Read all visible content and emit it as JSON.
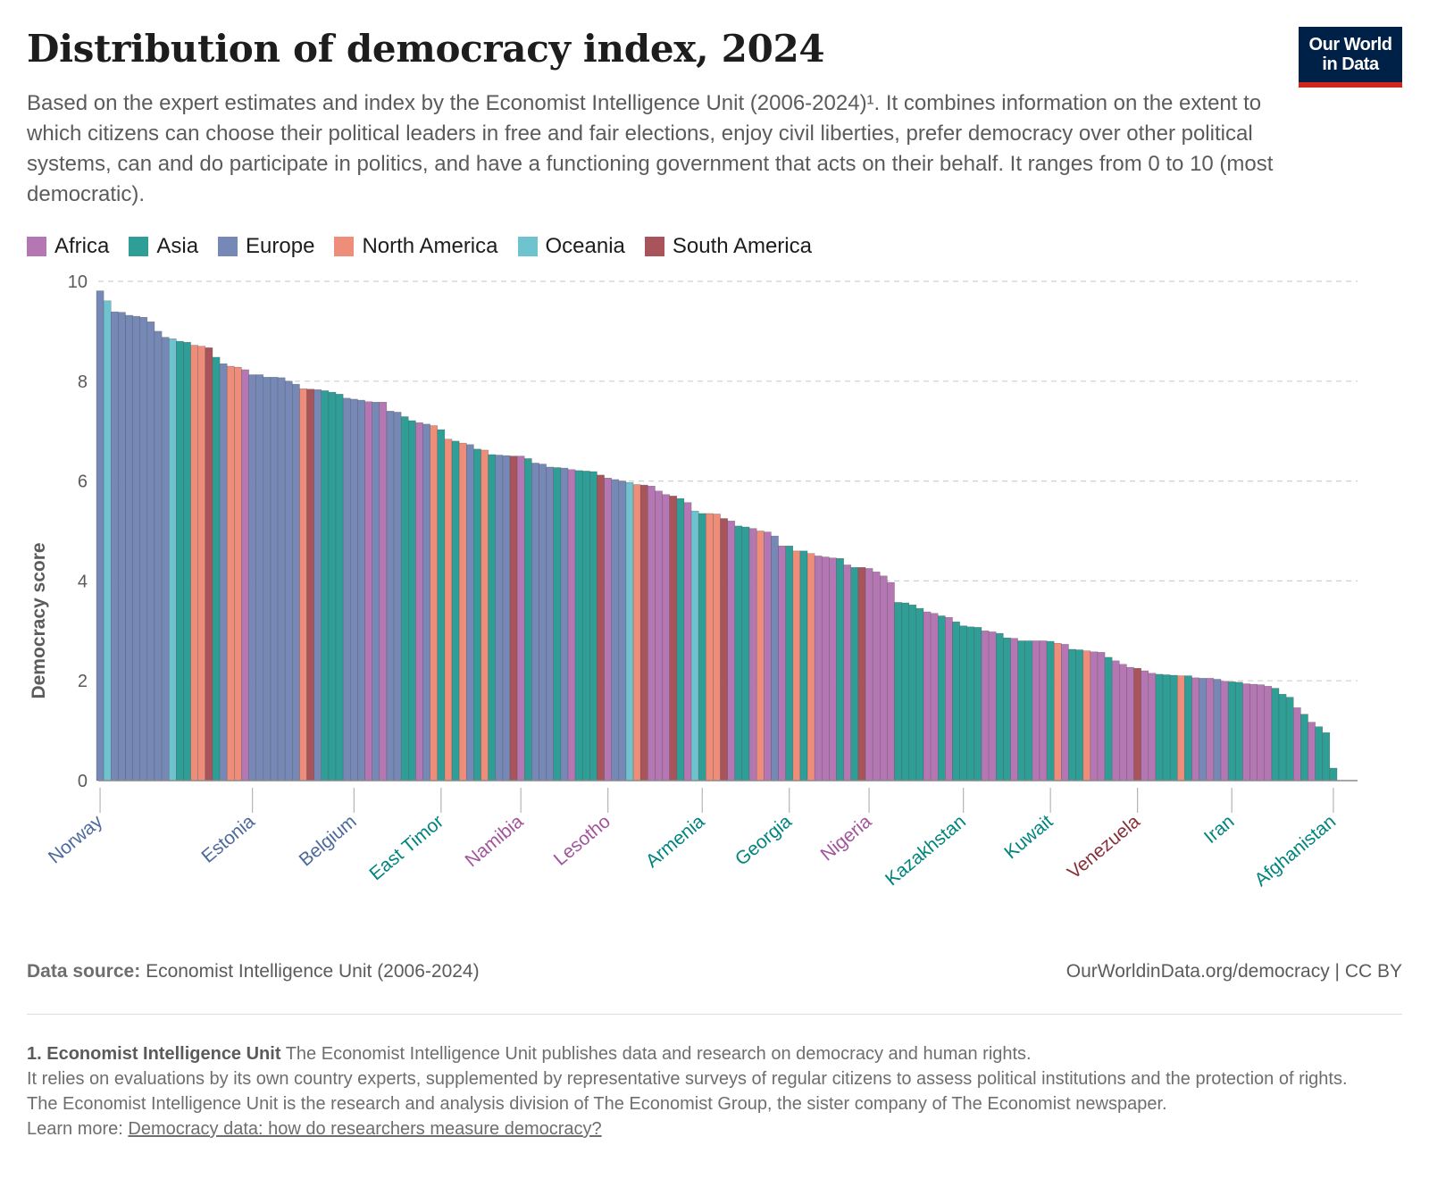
{
  "header": {
    "title": "Distribution of democracy index, 2024",
    "subtitle": "Based on the expert estimates and index by the Economist Intelligence Unit (2006-2024)¹. It combines information on the extent to which citizens can choose their political leaders in free and fair elections, enjoy civil liberties, prefer democracy over other political systems, can and do participate in politics, and have a functioning government that acts on their behalf. It ranges from 0 to 10 (most democratic).",
    "logo_line1": "Our World",
    "logo_line2": "in Data"
  },
  "colors": {
    "Africa": "#b577b3",
    "Asia": "#2f9e96",
    "Europe": "#7689b6",
    "North America": "#ed8d7a",
    "Oceania": "#6fc3cf",
    "South America": "#a9545a"
  },
  "label_colors": {
    "Africa": "#a2559c",
    "Asia": "#00847e",
    "Europe": "#4c6a9c",
    "North America": "#e56e5a",
    "Oceania": "#3db4c7",
    "South America": "#883039"
  },
  "chart_data": {
    "type": "bar",
    "title": "Distribution of democracy index, 2024",
    "ylabel": "Democracy score",
    "ylim": [
      0,
      10
    ],
    "yticks": [
      0,
      2,
      4,
      6,
      8,
      10
    ],
    "grid": true,
    "legend": [
      "Africa",
      "Asia",
      "Europe",
      "North America",
      "Oceania",
      "South America"
    ],
    "legend_position": "top-left",
    "labeled_countries": [
      "Norway",
      "Estonia",
      "Belgium",
      "East Timor",
      "Namibia",
      "Lesotho",
      "Armenia",
      "Georgia",
      "Nigeria",
      "Kazakhstan",
      "Kuwait",
      "Venezuela",
      "Iran",
      "Afghanistan"
    ],
    "bars": [
      {
        "v": 9.81,
        "r": "Europe",
        "c": "Norway"
      },
      {
        "v": 9.61,
        "r": "Oceania"
      },
      {
        "v": 9.39,
        "r": "Europe"
      },
      {
        "v": 9.38,
        "r": "Europe"
      },
      {
        "v": 9.32,
        "r": "Europe"
      },
      {
        "v": 9.3,
        "r": "Europe"
      },
      {
        "v": 9.28,
        "r": "Europe"
      },
      {
        "v": 9.19,
        "r": "Europe"
      },
      {
        "v": 9.0,
        "r": "Europe"
      },
      {
        "v": 8.88,
        "r": "Europe"
      },
      {
        "v": 8.85,
        "r": "Oceania"
      },
      {
        "v": 8.8,
        "r": "Asia"
      },
      {
        "v": 8.78,
        "r": "Asia"
      },
      {
        "v": 8.72,
        "r": "North America"
      },
      {
        "v": 8.7,
        "r": "North America"
      },
      {
        "v": 8.67,
        "r": "South America"
      },
      {
        "v": 8.48,
        "r": "Asia"
      },
      {
        "v": 8.35,
        "r": "Europe"
      },
      {
        "v": 8.3,
        "r": "North America"
      },
      {
        "v": 8.28,
        "r": "North America"
      },
      {
        "v": 8.23,
        "r": "Africa"
      },
      {
        "v": 8.13,
        "r": "Europe",
        "c": "Estonia"
      },
      {
        "v": 8.13,
        "r": "Europe"
      },
      {
        "v": 8.08,
        "r": "Europe"
      },
      {
        "v": 8.08,
        "r": "Europe"
      },
      {
        "v": 8.07,
        "r": "Europe"
      },
      {
        "v": 8.0,
        "r": "Europe"
      },
      {
        "v": 7.94,
        "r": "Europe"
      },
      {
        "v": 7.85,
        "r": "North America"
      },
      {
        "v": 7.84,
        "r": "South America"
      },
      {
        "v": 7.83,
        "r": "Europe"
      },
      {
        "v": 7.81,
        "r": "Asia"
      },
      {
        "v": 7.78,
        "r": "Asia"
      },
      {
        "v": 7.74,
        "r": "Asia"
      },
      {
        "v": 7.66,
        "r": "Europe"
      },
      {
        "v": 7.64,
        "r": "Europe",
        "c": "Belgium"
      },
      {
        "v": 7.62,
        "r": "Europe"
      },
      {
        "v": 7.59,
        "r": "Africa"
      },
      {
        "v": 7.58,
        "r": "Europe"
      },
      {
        "v": 7.58,
        "r": "Africa"
      },
      {
        "v": 7.4,
        "r": "Europe"
      },
      {
        "v": 7.38,
        "r": "Europe"
      },
      {
        "v": 7.29,
        "r": "Asia"
      },
      {
        "v": 7.21,
        "r": "Asia"
      },
      {
        "v": 7.17,
        "r": "Africa"
      },
      {
        "v": 7.14,
        "r": "Europe"
      },
      {
        "v": 7.11,
        "r": "North America"
      },
      {
        "v": 7.03,
        "r": "Asia",
        "c": "East Timor"
      },
      {
        "v": 6.84,
        "r": "North America"
      },
      {
        "v": 6.8,
        "r": "Asia"
      },
      {
        "v": 6.76,
        "r": "North America"
      },
      {
        "v": 6.73,
        "r": "Europe"
      },
      {
        "v": 6.64,
        "r": "Asia"
      },
      {
        "v": 6.62,
        "r": "North America"
      },
      {
        "v": 6.53,
        "r": "Asia"
      },
      {
        "v": 6.52,
        "r": "Europe"
      },
      {
        "v": 6.51,
        "r": "Europe"
      },
      {
        "v": 6.5,
        "r": "South America"
      },
      {
        "v": 6.5,
        "r": "Africa",
        "c": "Namibia"
      },
      {
        "v": 6.45,
        "r": "Asia"
      },
      {
        "v": 6.36,
        "r": "Europe"
      },
      {
        "v": 6.34,
        "r": "Europe"
      },
      {
        "v": 6.28,
        "r": "Europe"
      },
      {
        "v": 6.27,
        "r": "Asia"
      },
      {
        "v": 6.26,
        "r": "Europe"
      },
      {
        "v": 6.23,
        "r": "Africa"
      },
      {
        "v": 6.21,
        "r": "Asia"
      },
      {
        "v": 6.2,
        "r": "Asia"
      },
      {
        "v": 6.19,
        "r": "Asia"
      },
      {
        "v": 6.12,
        "r": "South America"
      },
      {
        "v": 6.06,
        "r": "Africa",
        "c": "Lesotho"
      },
      {
        "v": 6.03,
        "r": "Europe"
      },
      {
        "v": 6.0,
        "r": "Europe"
      },
      {
        "v": 5.97,
        "r": "Oceania"
      },
      {
        "v": 5.93,
        "r": "North America"
      },
      {
        "v": 5.92,
        "r": "South America"
      },
      {
        "v": 5.9,
        "r": "Africa"
      },
      {
        "v": 5.8,
        "r": "Africa"
      },
      {
        "v": 5.73,
        "r": "Africa"
      },
      {
        "v": 5.7,
        "r": "South America"
      },
      {
        "v": 5.65,
        "r": "Asia"
      },
      {
        "v": 5.57,
        "r": "Africa"
      },
      {
        "v": 5.4,
        "r": "Oceania"
      },
      {
        "v": 5.35,
        "r": "Asia",
        "c": "Armenia"
      },
      {
        "v": 5.35,
        "r": "North America"
      },
      {
        "v": 5.34,
        "r": "North America"
      },
      {
        "v": 5.25,
        "r": "South America"
      },
      {
        "v": 5.2,
        "r": "Africa"
      },
      {
        "v": 5.1,
        "r": "Asia"
      },
      {
        "v": 5.08,
        "r": "Asia"
      },
      {
        "v": 5.05,
        "r": "Africa"
      },
      {
        "v": 5.0,
        "r": "North America"
      },
      {
        "v": 4.98,
        "r": "Africa"
      },
      {
        "v": 4.9,
        "r": "Europe"
      },
      {
        "v": 4.7,
        "r": "Africa"
      },
      {
        "v": 4.7,
        "r": "Asia",
        "c": "Georgia"
      },
      {
        "v": 4.6,
        "r": "North America"
      },
      {
        "v": 4.6,
        "r": "Asia"
      },
      {
        "v": 4.55,
        "r": "North America"
      },
      {
        "v": 4.5,
        "r": "Africa"
      },
      {
        "v": 4.48,
        "r": "Africa"
      },
      {
        "v": 4.46,
        "r": "Africa"
      },
      {
        "v": 4.45,
        "r": "Asia"
      },
      {
        "v": 4.32,
        "r": "Africa"
      },
      {
        "v": 4.27,
        "r": "Asia"
      },
      {
        "v": 4.27,
        "r": "South America"
      },
      {
        "v": 4.25,
        "r": "Africa",
        "c": "Nigeria"
      },
      {
        "v": 4.18,
        "r": "Africa"
      },
      {
        "v": 4.1,
        "r": "Africa"
      },
      {
        "v": 3.97,
        "r": "Africa"
      },
      {
        "v": 3.57,
        "r": "Asia"
      },
      {
        "v": 3.56,
        "r": "Asia"
      },
      {
        "v": 3.52,
        "r": "Asia"
      },
      {
        "v": 3.45,
        "r": "Asia"
      },
      {
        "v": 3.38,
        "r": "Africa"
      },
      {
        "v": 3.35,
        "r": "Africa"
      },
      {
        "v": 3.3,
        "r": "Asia"
      },
      {
        "v": 3.27,
        "r": "Africa"
      },
      {
        "v": 3.18,
        "r": "Asia"
      },
      {
        "v": 3.1,
        "r": "Asia",
        "c": "Kazakhstan"
      },
      {
        "v": 3.08,
        "r": "Asia"
      },
      {
        "v": 3.07,
        "r": "Asia"
      },
      {
        "v": 3.0,
        "r": "Africa"
      },
      {
        "v": 2.98,
        "r": "Africa"
      },
      {
        "v": 2.95,
        "r": "Asia"
      },
      {
        "v": 2.86,
        "r": "Asia"
      },
      {
        "v": 2.85,
        "r": "Africa"
      },
      {
        "v": 2.8,
        "r": "Asia"
      },
      {
        "v": 2.8,
        "r": "Asia"
      },
      {
        "v": 2.8,
        "r": "Africa"
      },
      {
        "v": 2.8,
        "r": "Africa"
      },
      {
        "v": 2.79,
        "r": "Asia",
        "c": "Kuwait"
      },
      {
        "v": 2.75,
        "r": "North America"
      },
      {
        "v": 2.73,
        "r": "Africa"
      },
      {
        "v": 2.63,
        "r": "Asia"
      },
      {
        "v": 2.62,
        "r": "Asia"
      },
      {
        "v": 2.6,
        "r": "North America"
      },
      {
        "v": 2.58,
        "r": "Africa"
      },
      {
        "v": 2.57,
        "r": "Africa"
      },
      {
        "v": 2.47,
        "r": "Asia"
      },
      {
        "v": 2.4,
        "r": "Africa"
      },
      {
        "v": 2.33,
        "r": "Africa"
      },
      {
        "v": 2.27,
        "r": "Africa"
      },
      {
        "v": 2.25,
        "r": "South America",
        "c": "Venezuela"
      },
      {
        "v": 2.2,
        "r": "Africa"
      },
      {
        "v": 2.15,
        "r": "Africa"
      },
      {
        "v": 2.13,
        "r": "Asia"
      },
      {
        "v": 2.12,
        "r": "Asia"
      },
      {
        "v": 2.11,
        "r": "Asia"
      },
      {
        "v": 2.1,
        "r": "North America"
      },
      {
        "v": 2.1,
        "r": "Asia"
      },
      {
        "v": 2.06,
        "r": "Africa"
      },
      {
        "v": 2.05,
        "r": "Europe"
      },
      {
        "v": 2.05,
        "r": "Africa"
      },
      {
        "v": 2.03,
        "r": "Europe"
      },
      {
        "v": 1.99,
        "r": "Africa"
      },
      {
        "v": 1.98,
        "r": "Asia",
        "c": "Iran"
      },
      {
        "v": 1.97,
        "r": "Asia"
      },
      {
        "v": 1.94,
        "r": "Africa"
      },
      {
        "v": 1.93,
        "r": "Africa"
      },
      {
        "v": 1.92,
        "r": "Africa"
      },
      {
        "v": 1.89,
        "r": "Africa"
      },
      {
        "v": 1.85,
        "r": "Asia"
      },
      {
        "v": 1.73,
        "r": "Asia"
      },
      {
        "v": 1.67,
        "r": "Asia"
      },
      {
        "v": 1.46,
        "r": "Africa"
      },
      {
        "v": 1.33,
        "r": "Asia"
      },
      {
        "v": 1.17,
        "r": "Africa"
      },
      {
        "v": 1.08,
        "r": "Asia"
      },
      {
        "v": 0.96,
        "r": "Asia"
      },
      {
        "v": 0.25,
        "r": "Asia",
        "c": "Afghanistan"
      }
    ]
  },
  "footer": {
    "source_label": "Data source:",
    "source_text": "Economist Intelligence Unit (2006-2024)",
    "credit": "OurWorldinData.org/democracy | CC BY"
  },
  "notes": {
    "note_label": "1. Economist Intelligence Unit",
    "note_line1": "The Economist Intelligence Unit publishes data and research on democracy and human rights.",
    "note_line2": "It relies on evaluations by its own country experts, supplemented by representative surveys of regular citizens to assess political institutions and the protection of rights.",
    "note_line3": "The Economist Intelligence Unit is the research and analysis division of The Economist Group, the sister company of The Economist newspaper.",
    "learn_more_label": "Learn more:",
    "learn_more_link": "Democracy data: how do researchers measure democracy?"
  }
}
